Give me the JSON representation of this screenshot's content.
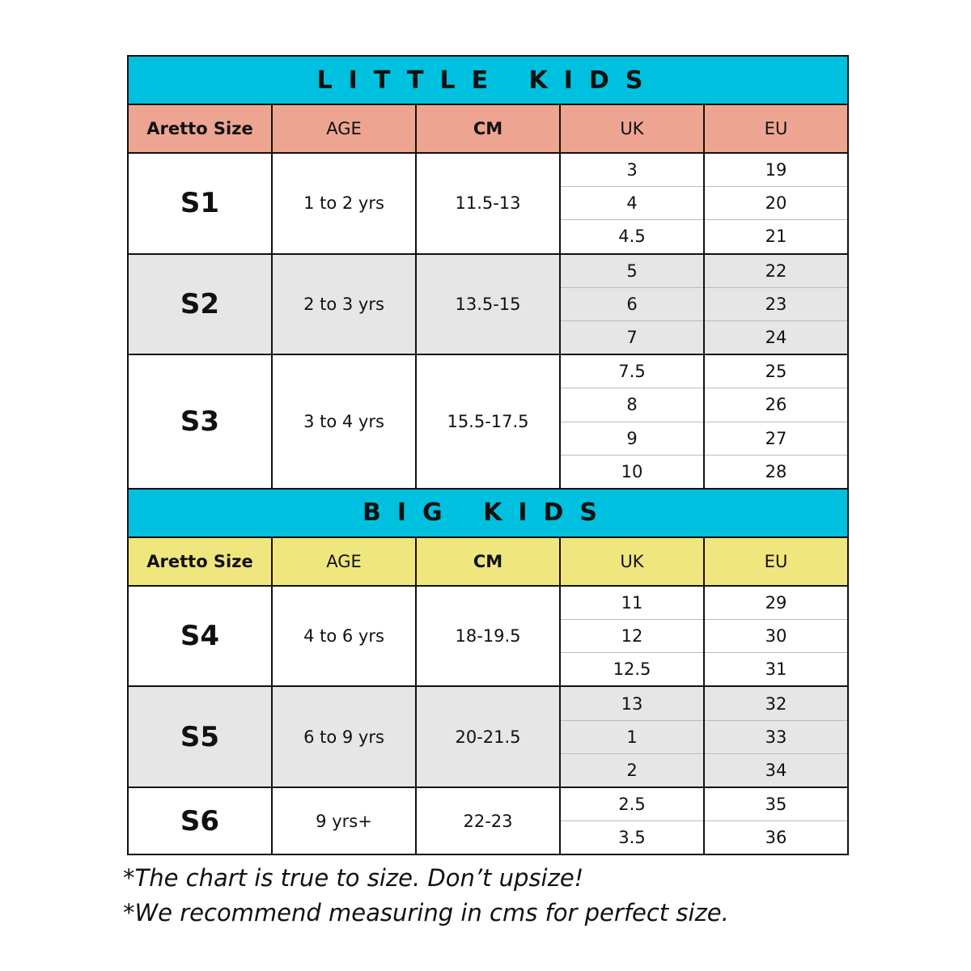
{
  "colors": {
    "title_bg": "#00C0DF",
    "little_header_bg": "#EDA592",
    "big_header_bg": "#F0E67E",
    "shaded_row_bg": "#E6E6E6"
  },
  "sections": [
    {
      "title": "LITTLE KIDS",
      "header_color": "#EDA592",
      "headers": [
        "Aretto Size",
        "AGE",
        "CM",
        "UK",
        "EU"
      ],
      "rows": [
        {
          "size": "S1",
          "age": "1 to 2 yrs",
          "cm": "11.5-13",
          "uk": [
            "3",
            "4",
            "4.5"
          ],
          "eu": [
            "19",
            "20",
            "21"
          ],
          "shaded": false
        },
        {
          "size": "S2",
          "age": "2 to 3 yrs",
          "cm": "13.5-15",
          "uk": [
            "5",
            "6",
            "7"
          ],
          "eu": [
            "22",
            "23",
            "24"
          ],
          "shaded": true
        },
        {
          "size": "S3",
          "age": "3 to 4 yrs",
          "cm": "15.5-17.5",
          "uk": [
            "7.5",
            "8",
            "9",
            "10"
          ],
          "eu": [
            "25",
            "26",
            "27",
            "28"
          ],
          "shaded": false
        }
      ]
    },
    {
      "title": "BIG KIDS",
      "header_color": "#F0E67E",
      "headers": [
        "Aretto Size",
        "AGE",
        "CM",
        "UK",
        "EU"
      ],
      "rows": [
        {
          "size": "S4",
          "age": "4 to 6 yrs",
          "cm": "18-19.5",
          "uk": [
            "11",
            "12",
            "12.5"
          ],
          "eu": [
            "29",
            "30",
            "31"
          ],
          "shaded": false
        },
        {
          "size": "S5",
          "age": "6 to 9 yrs",
          "cm": "20-21.5",
          "uk": [
            "13",
            "1",
            "2"
          ],
          "eu": [
            "32",
            "33",
            "34"
          ],
          "shaded": true
        },
        {
          "size": "S6",
          "age": "9 yrs+",
          "cm": "22-23",
          "uk": [
            "2.5",
            "3.5"
          ],
          "eu": [
            "35",
            "36"
          ],
          "shaded": false
        }
      ]
    }
  ],
  "notes": [
    "*The chart is true to size. Don’t upsize!",
    "*We recommend measuring in cms for perfect size."
  ]
}
